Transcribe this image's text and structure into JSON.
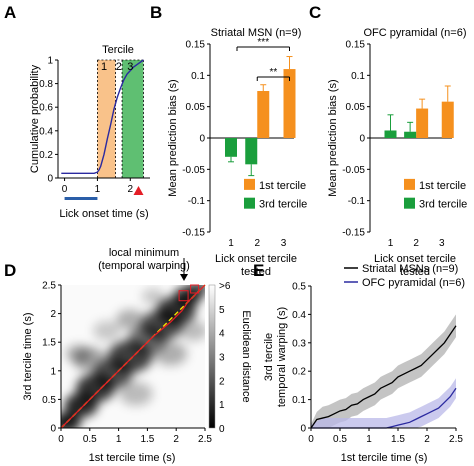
{
  "panels": {
    "A": {
      "letter": "A"
    },
    "B": {
      "letter": "B"
    },
    "C": {
      "letter": "C"
    },
    "D": {
      "letter": "D"
    },
    "E": {
      "letter": "E"
    }
  },
  "colors": {
    "orange": "#f5901e",
    "green": "#1a9e3c",
    "tercile1_fill": "#f9c28a",
    "tercile3_fill": "#5fbf72",
    "navy": "#2b2aa0",
    "black": "#000000",
    "red": "#e41e26",
    "yellow": "#f2e000",
    "lavender": "#b9b8e8",
    "gray": "#b0b0b0",
    "blue_bar": "#2a5ea8"
  },
  "chart_data": [
    {
      "id": "A",
      "type": "line",
      "title": "",
      "xlabel": "Lick onset time (s)",
      "ylabel": "Cumulative probability",
      "xlim": [
        -0.2,
        2.6
      ],
      "ylim": [
        0,
        1
      ],
      "xticks": [
        "0",
        "1",
        "2"
      ],
      "yticks": [
        "0",
        "0.2",
        "0.4",
        "0.6",
        "0.8",
        "1"
      ],
      "tercile_label": "Tercile",
      "tercile_numbers": [
        "1",
        "2",
        "3"
      ],
      "tercile_bands": [
        [
          1.0,
          1.55
        ],
        [
          1.55,
          1.75
        ],
        [
          1.75,
          2.4
        ]
      ],
      "x": [
        -0.1,
        0.9,
        1.0,
        1.05,
        1.1,
        1.2,
        1.3,
        1.4,
        1.5,
        1.6,
        1.7,
        1.8,
        1.9,
        2.0,
        2.1,
        2.2,
        2.3,
        2.4
      ],
      "values": [
        0.04,
        0.04,
        0.05,
        0.07,
        0.1,
        0.2,
        0.33,
        0.45,
        0.58,
        0.68,
        0.76,
        0.83,
        0.88,
        0.91,
        0.94,
        0.96,
        0.98,
        1.0
      ],
      "markers": {
        "baseline_bar": [
          0,
          1
        ],
        "triangle_x": 2.25
      }
    },
    {
      "id": "B",
      "type": "bar",
      "title": "Striatal MSN (n=9)",
      "xlabel": "Lick onset tercile tested",
      "ylabel": "Mean prediction bias (s)",
      "ylim": [
        -0.15,
        0.15
      ],
      "yticks": [
        "-0.15",
        "-0.1",
        "-0.05",
        "0",
        "0.05",
        "0.1",
        "0.15"
      ],
      "categories": [
        "1",
        "2",
        "3"
      ],
      "series": [
        {
          "name": "1st tercile",
          "values": [
            null,
            0.075,
            0.11
          ],
          "errors": [
            null,
            0.01,
            0.02
          ]
        },
        {
          "name": "3rd tercile",
          "values": [
            -0.03,
            -0.042,
            null
          ],
          "errors": [
            0.008,
            0.018,
            null
          ]
        }
      ],
      "significance": [
        {
          "text": "***",
          "from": 1,
          "to": 3
        },
        {
          "text": "**",
          "from": 2,
          "to": 3
        }
      ]
    },
    {
      "id": "C",
      "type": "bar",
      "title": "OFC pyramidal (n=6)",
      "xlabel": "Lick onset tercile tested",
      "ylabel": "Mean prediction bias (s)",
      "ylim": [
        -0.15,
        0.15
      ],
      "yticks": [
        "-0.15",
        "-0.1",
        "-0.05",
        "0",
        "0.05",
        "0.1",
        "0.15"
      ],
      "categories": [
        "1",
        "2",
        "3"
      ],
      "series": [
        {
          "name": "1st tercile",
          "values": [
            null,
            0.047,
            0.058
          ],
          "errors": [
            null,
            0.015,
            0.025
          ]
        },
        {
          "name": "3rd tercile",
          "values": [
            0.012,
            0.01,
            null
          ],
          "errors": [
            0.025,
            0.015,
            null
          ]
        }
      ]
    },
    {
      "id": "D",
      "type": "heatmap",
      "title": "",
      "xlabel": "1st tercile time (s)",
      "ylabel": "3rd tercile time (s)",
      "xlim": [
        0,
        2.5
      ],
      "ylim": [
        0,
        2.5
      ],
      "xticks": [
        "0",
        "0.5",
        "1",
        "1.5",
        "2",
        "2.5"
      ],
      "yticks": [
        "0",
        "0.5",
        "1",
        "1.5",
        "2",
        "2.5"
      ],
      "colorbar_label": "Euclidean distance",
      "colorbar_ticks": [
        ">6",
        "5",
        "4",
        "3",
        "2",
        "1",
        "0"
      ],
      "annotation": {
        "line1": "local minimum",
        "line2": "(temporal warping)"
      },
      "path": {
        "x": [
          0,
          0.2,
          0.5,
          0.8,
          1.0,
          1.3,
          1.6,
          1.9,
          2.1,
          2.2,
          2.3,
          2.4,
          2.5
        ],
        "y": [
          0,
          0.2,
          0.5,
          0.8,
          1.0,
          1.3,
          1.6,
          1.85,
          2.05,
          2.2,
          2.3,
          2.4,
          2.5
        ]
      }
    },
    {
      "id": "E",
      "type": "line",
      "title": "",
      "xlabel": "1st tercile time (s)",
      "ylabel_line1": "3rd tercile",
      "ylabel_line2": "temporal warping (s)",
      "xlim": [
        0,
        2.5
      ],
      "ylim": [
        0,
        0.5
      ],
      "xticks": [
        "0",
        "0.5",
        "1",
        "1.5",
        "2",
        "2.5"
      ],
      "yticks": [
        "0",
        "0.1",
        "0.2",
        "0.3",
        "0.4",
        "0.5"
      ],
      "x": [
        0,
        0.1,
        0.2,
        0.3,
        0.4,
        0.5,
        0.6,
        0.7,
        0.8,
        0.9,
        1.0,
        1.1,
        1.2,
        1.3,
        1.4,
        1.5,
        1.6,
        1.7,
        1.8,
        1.9,
        2.0,
        2.1,
        2.2,
        2.3,
        2.4,
        2.5
      ],
      "series": [
        {
          "name": "Striatal MSNs (n=9)",
          "values": [
            0.0,
            0.03,
            0.035,
            0.04,
            0.05,
            0.06,
            0.065,
            0.08,
            0.085,
            0.1,
            0.11,
            0.12,
            0.14,
            0.15,
            0.16,
            0.18,
            0.19,
            0.2,
            0.21,
            0.22,
            0.24,
            0.26,
            0.28,
            0.3,
            0.33,
            0.36
          ],
          "band": 0.04
        },
        {
          "name": "OFC pyramidal (n=6)",
          "values": [
            0.0,
            0.0,
            0.0,
            0.0,
            0.0,
            0.0,
            0.0,
            0.0,
            0.0,
            0.0,
            0.0,
            0.0,
            0.0,
            0.0,
            0.005,
            0.01,
            0.015,
            0.02,
            0.03,
            0.04,
            0.05,
            0.06,
            0.07,
            0.09,
            0.11,
            0.14
          ],
          "band": 0.035
        }
      ]
    }
  ]
}
